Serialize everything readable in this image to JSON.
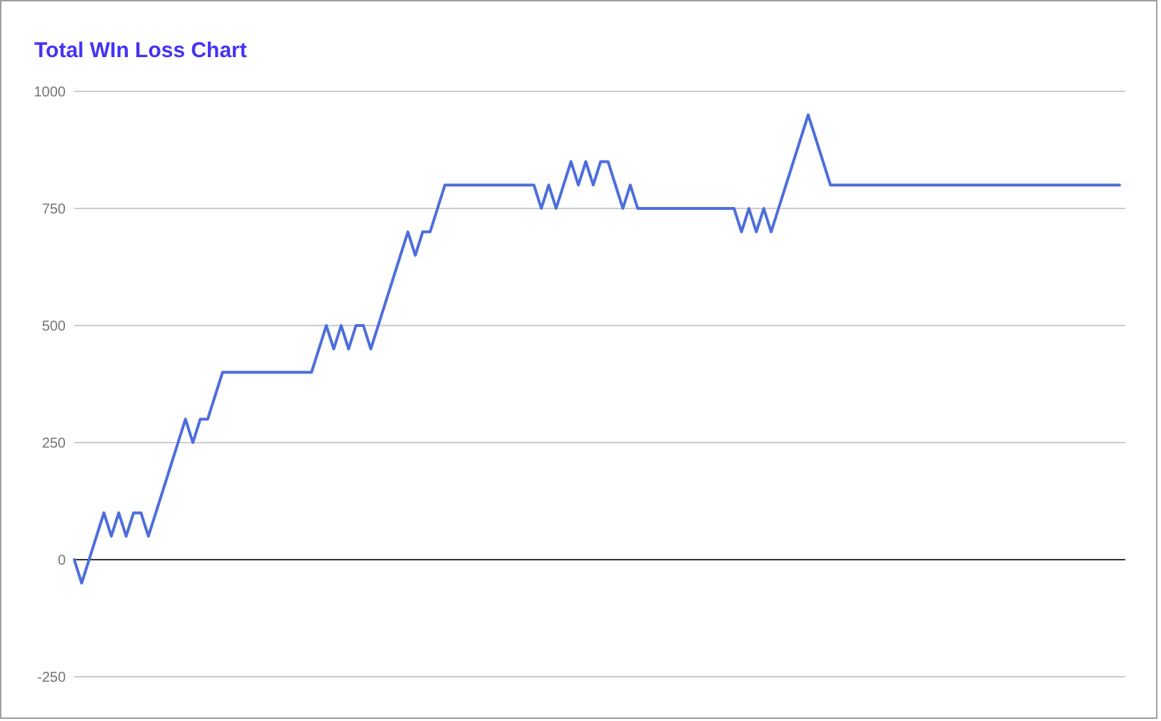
{
  "chart_data": {
    "type": "line",
    "title": "Total WIn Loss Chart",
    "categories": [
      null,
      null,
      null,
      null,
      null,
      null,
      null,
      null,
      null,
      null,
      null,
      null,
      null,
      null,
      null,
      null,
      null,
      null,
      null,
      null,
      null,
      null,
      null,
      null,
      null,
      null,
      null,
      null,
      null,
      null,
      null,
      null,
      null,
      null,
      null,
      null,
      null,
      null,
      null,
      null,
      null,
      null,
      null,
      null,
      null,
      null,
      null,
      null,
      null,
      null,
      null,
      null,
      null,
      null,
      null,
      null,
      null,
      null,
      null,
      null,
      null,
      null,
      null,
      null,
      null,
      null,
      null,
      null,
      null,
      null,
      null,
      null,
      null,
      null,
      null,
      null,
      null,
      null,
      null,
      null,
      null,
      null,
      null,
      null,
      null,
      null,
      null,
      null,
      null,
      null,
      null,
      null,
      null,
      null,
      null,
      null,
      null,
      null,
      null,
      null,
      null,
      null,
      null,
      null,
      null,
      null,
      null,
      null,
      null,
      null,
      null,
      null,
      null,
      null,
      null,
      null,
      null,
      null,
      null,
      null,
      null,
      null,
      null,
      null,
      null,
      null,
      null,
      null,
      null,
      null,
      null,
      null,
      null,
      null,
      null,
      null,
      null,
      null,
      null,
      null,
      null,
      null
    ],
    "series": [
      {
        "color": "#4d6edb",
        "values": [
          0,
          -50,
          0,
          50,
          100,
          50,
          100,
          50,
          100,
          100,
          50,
          100,
          150,
          200,
          250,
          300,
          250,
          300,
          300,
          350,
          400,
          400,
          400,
          400,
          400,
          400,
          400,
          400,
          400,
          400,
          400,
          400,
          400,
          450,
          500,
          450,
          500,
          450,
          500,
          500,
          450,
          500,
          550,
          600,
          650,
          700,
          650,
          700,
          700,
          750,
          800,
          800,
          800,
          800,
          800,
          800,
          800,
          800,
          800,
          800,
          800,
          800,
          800,
          750,
          800,
          750,
          800,
          850,
          800,
          850,
          800,
          850,
          850,
          800,
          750,
          800,
          750,
          750,
          750,
          750,
          750,
          750,
          750,
          750,
          750,
          750,
          750,
          750,
          750,
          750,
          700,
          750,
          700,
          750,
          700,
          750,
          800,
          850,
          900,
          950,
          900,
          850,
          800,
          800,
          800,
          800,
          800,
          800,
          800,
          800,
          800,
          800,
          800,
          800,
          800,
          800,
          800,
          800,
          800,
          800,
          800,
          800,
          800,
          800,
          800,
          800,
          800,
          800,
          800,
          800,
          800,
          800,
          800,
          800,
          800,
          800,
          800,
          800,
          800,
          800,
          800,
          800
        ]
      }
    ],
    "ylim": [
      -250,
      1000
    ],
    "yticks": [
      -250,
      0,
      250,
      500,
      750,
      1000
    ],
    "grid": "y"
  }
}
